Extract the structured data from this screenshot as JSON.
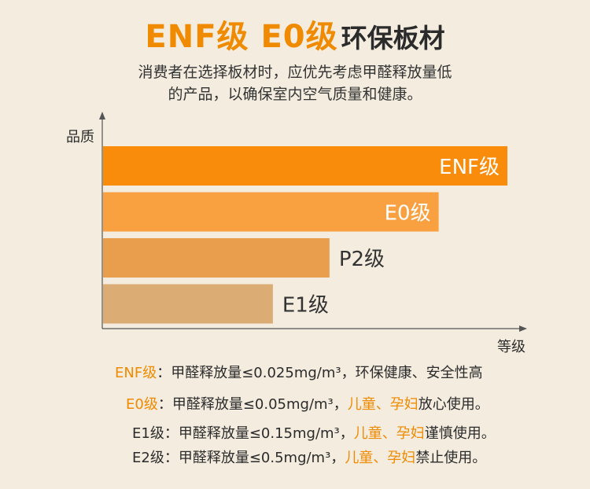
{
  "title": {
    "part1": "ENF级 E0级",
    "part2": "环保板材"
  },
  "subtitle": {
    "line1": "消费者在选择板材时，应优先考虑甲醛释放量低",
    "line2": "的产品，以确保室内空气质量和健康。"
  },
  "chart_data": {
    "type": "bar",
    "orientation": "horizontal",
    "ylabel": "品质",
    "xlabel": "等级",
    "categories": [
      "ENF级",
      "E0级",
      "P2级",
      "E1级"
    ],
    "values": [
      100,
      83,
      56,
      42
    ],
    "xlim": [
      0,
      100
    ],
    "grid": false,
    "colors": [
      "#f98c0a",
      "#f9a140",
      "#e89e4c",
      "#dcac75"
    ],
    "label_colors": [
      "#ffffff",
      "#ffffff",
      "#333333",
      "#333333"
    ]
  },
  "notes": [
    {
      "level": "ENF级",
      "level_color": "#f08a00",
      "text": "：甲醛释放量≤0.025mg/m³，环保健康、安全性高",
      "highlight": "",
      "tail": ""
    },
    {
      "level": "E0级",
      "level_color": "#f08a00",
      "text": "：甲醛释放量≤0.05mg/m³，",
      "highlight": "儿童、孕妇",
      "tail": "放心使用。"
    },
    {
      "level": "E1级",
      "level_color": "#2b2b2b",
      "text": "：甲醛释放量≤0.15mg/m³，",
      "highlight": "儿童、孕妇",
      "tail": "谨慎使用。"
    },
    {
      "level": "E2级",
      "level_color": "#2b2b2b",
      "text": "：甲醛释放量≤0.5mg/m³，",
      "highlight": "儿童、孕妇",
      "tail": "禁止使用。"
    }
  ]
}
